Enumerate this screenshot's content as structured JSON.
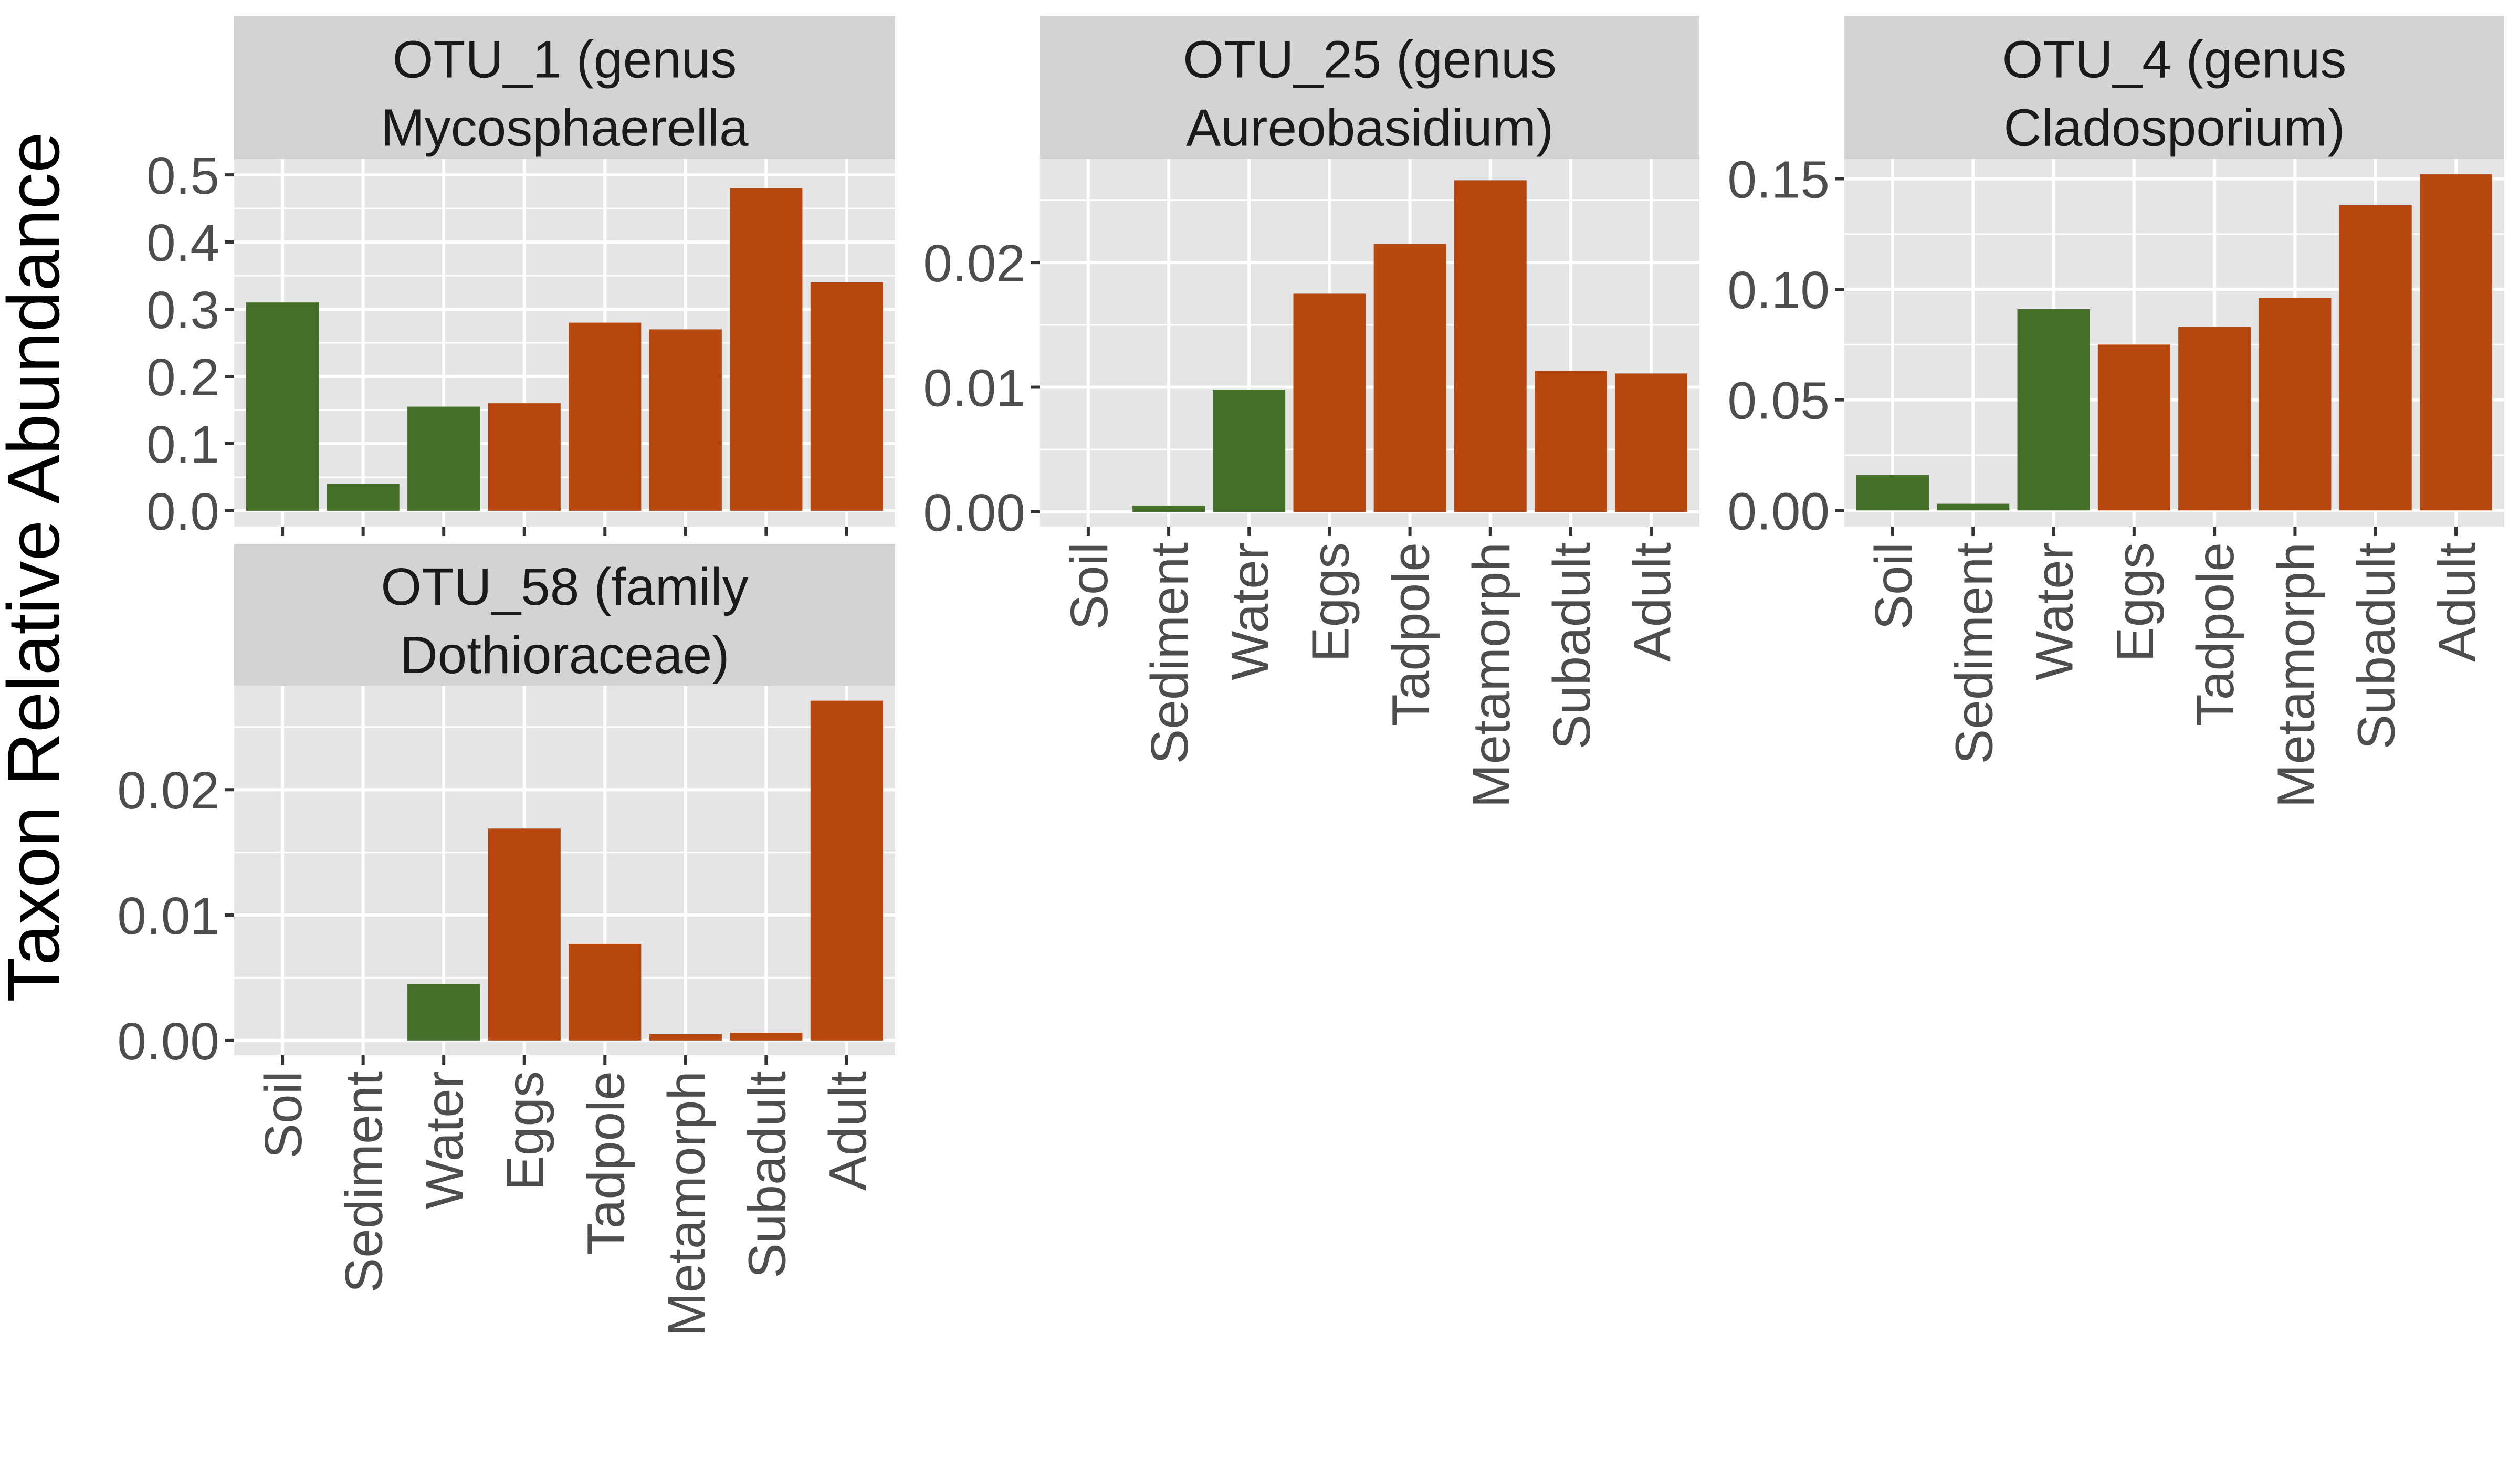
{
  "y_label": "Taxon Relative Abundance",
  "colors": {
    "environment": "#46702a",
    "host": "#b5470f",
    "panel_bg": "#e5e5e5",
    "strip_bg": "#d3d3d3",
    "grid": "#ffffff"
  },
  "chart_data": [
    {
      "type": "bar",
      "facet_title": [
        "OTU_1 (genus",
        "Mycosphaerella"
      ],
      "categories": [
        "Soil",
        "Sediment",
        "Water",
        "Eggs",
        "Tadpole",
        "Metamorph",
        "Subadult",
        "Adult"
      ],
      "groups": [
        "environment",
        "environment",
        "environment",
        "host",
        "host",
        "host",
        "host",
        "host"
      ],
      "values": [
        0.31,
        0.04,
        0.155,
        0.16,
        0.28,
        0.27,
        0.48,
        0.34
      ],
      "ylim": [
        -0.0235,
        0.5235
      ],
      "yticks": [
        0.0,
        0.1,
        0.2,
        0.3,
        0.4,
        0.5
      ],
      "ytick_labels": [
        "0.0",
        "0.1",
        "0.2",
        "0.3",
        "0.4",
        "0.5"
      ],
      "show_x_labels": false
    },
    {
      "type": "bar",
      "facet_title": [
        "OTU_25 (genus",
        "Aureobasidium)"
      ],
      "categories": [
        "Soil",
        "Sediment",
        "Water",
        "Eggs",
        "Tadpole",
        "Metamorph",
        "Subadult",
        "Adult"
      ],
      "groups": [
        "environment",
        "environment",
        "environment",
        "host",
        "host",
        "host",
        "host",
        "host"
      ],
      "values": [
        0.0,
        0.0005,
        0.0098,
        0.0175,
        0.0215,
        0.0266,
        0.0113,
        0.0111
      ],
      "ylim": [
        -0.00118,
        0.0283
      ],
      "yticks": [
        0.0,
        0.01,
        0.02
      ],
      "ytick_labels": [
        "0.00",
        "0.01",
        "0.02"
      ],
      "show_x_labels": true
    },
    {
      "type": "bar",
      "facet_title": [
        "OTU_4 (genus",
        "Cladosporium)"
      ],
      "categories": [
        "Soil",
        "Sediment",
        "Water",
        "Eggs",
        "Tadpole",
        "Metamorph",
        "Subadult",
        "Adult"
      ],
      "groups": [
        "environment",
        "environment",
        "environment",
        "host",
        "host",
        "host",
        "host",
        "host"
      ],
      "values": [
        0.016,
        0.003,
        0.091,
        0.075,
        0.083,
        0.096,
        0.138,
        0.152
      ],
      "ylim": [
        -0.0073,
        0.1589
      ],
      "yticks": [
        0.0,
        0.05,
        0.1,
        0.15
      ],
      "ytick_labels": [
        "0.00",
        "0.05",
        "0.10",
        "0.15"
      ],
      "show_x_labels": true
    },
    {
      "type": "bar",
      "facet_title": [
        "OTU_58 (family",
        "Dothioraceae)"
      ],
      "categories": [
        "Soil",
        "Sediment",
        "Water",
        "Eggs",
        "Tadpole",
        "Metamorph",
        "Subadult",
        "Adult"
      ],
      "groups": [
        "environment",
        "environment",
        "environment",
        "host",
        "host",
        "host",
        "host",
        "host"
      ],
      "values": [
        0.0,
        0.0,
        0.0045,
        0.0169,
        0.0077,
        0.0005,
        0.0006,
        0.0271
      ],
      "ylim": [
        -0.00118,
        0.0283
      ],
      "yticks": [
        0.0,
        0.01,
        0.02
      ],
      "ytick_labels": [
        "0.00",
        "0.01",
        "0.02"
      ],
      "show_x_labels": true
    }
  ]
}
